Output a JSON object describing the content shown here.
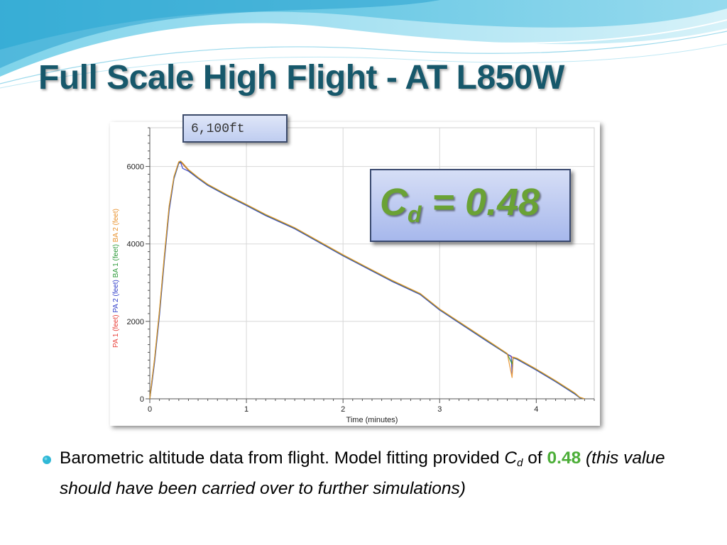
{
  "slide": {
    "title": "Full Scale High Flight - AT L850W",
    "callout_peak": "6,100ft",
    "cd_box": {
      "symbol": "C",
      "subscript": "d",
      "equals_value": " = 0.48"
    },
    "bullet": {
      "text1": "Barometric altitude data from flight. Model fitting provided ",
      "cd_symbol": "C",
      "cd_sub": "d",
      "text2": " of ",
      "value": "0.48",
      "text3": " (this value should have been carried over to further simulations)"
    },
    "colors": {
      "title": "#17586b",
      "cd_value": "#6aa235",
      "bullet_value": "#4cae38",
      "bullet_marker": "#2fb8d6"
    }
  },
  "chart_data": {
    "type": "line",
    "xlabel": "Time (minutes)",
    "ylabel_parts": [
      {
        "text": "PA 1 (feet)",
        "color": "#e8413a"
      },
      {
        "text": "PA 2 (feet)",
        "color": "#3340c9"
      },
      {
        "text": "BA 1 (feet)",
        "color": "#2e9a3a"
      },
      {
        "text": "BA 2 (feet)",
        "color": "#e8922e"
      }
    ],
    "xlim": [
      0,
      4.6
    ],
    "ylim": [
      0,
      7000
    ],
    "x_ticks": [
      0,
      1,
      2,
      3,
      4
    ],
    "y_ticks": [
      0,
      2000,
      4000,
      6000
    ],
    "x_tick_labels": [
      "0",
      "1",
      "2",
      "3",
      "4"
    ],
    "y_tick_labels": [
      "0",
      "2000",
      "4000",
      "6000"
    ],
    "grid": true,
    "legend": "none",
    "series": [
      {
        "color": "#e8413a",
        "x": [
          0,
          0.02,
          0.05,
          0.1,
          0.15,
          0.2,
          0.25,
          0.3,
          0.32,
          0.34,
          0.4,
          0.5,
          0.6,
          0.8,
          1.0,
          1.2,
          1.5,
          2.0,
          2.5,
          2.8,
          3.0,
          3.5,
          3.7,
          3.75,
          3.76,
          3.8,
          4.0,
          4.2,
          4.4,
          4.45,
          4.5
        ],
        "y": [
          0,
          400,
          1000,
          2200,
          3600,
          4900,
          5700,
          6100,
          6120,
          6060,
          5900,
          5700,
          5520,
          5250,
          5000,
          4740,
          4400,
          3700,
          3050,
          2700,
          2300,
          1480,
          1150,
          1080,
          1060,
          1030,
          750,
          450,
          130,
          30,
          0
        ]
      },
      {
        "color": "#3340c9",
        "x": [
          0,
          0.02,
          0.05,
          0.1,
          0.15,
          0.2,
          0.25,
          0.3,
          0.32,
          0.34,
          0.4,
          0.5,
          0.6,
          0.8,
          1.0,
          1.2,
          1.5,
          2.0,
          2.5,
          2.8,
          3.0,
          3.5,
          3.7,
          3.74,
          3.75,
          3.76,
          3.8,
          4.0,
          4.2,
          4.4,
          4.45,
          4.5
        ],
        "y": [
          0,
          350,
          950,
          2150,
          3550,
          4850,
          5680,
          6080,
          6100,
          5950,
          5880,
          5690,
          5510,
          5240,
          4990,
          4730,
          4390,
          3690,
          3040,
          2690,
          2290,
          1470,
          1150,
          1100,
          650,
          1060,
          1020,
          740,
          440,
          120,
          25,
          0
        ]
      },
      {
        "color": "#2e9a3a",
        "x": [
          0,
          0.02,
          0.05,
          0.1,
          0.15,
          0.2,
          0.25,
          0.3,
          0.32,
          0.34,
          0.4,
          0.5,
          0.6,
          0.8,
          1.0,
          1.2,
          1.5,
          2.0,
          2.5,
          2.8,
          3.0,
          3.5,
          3.7,
          3.75,
          3.76,
          3.8,
          4.0,
          4.2,
          4.4,
          4.45,
          4.5
        ],
        "y": [
          0,
          420,
          1030,
          2250,
          3650,
          4950,
          5720,
          6110,
          6130,
          6080,
          5910,
          5710,
          5530,
          5260,
          5010,
          4750,
          4410,
          3710,
          3060,
          2710,
          2310,
          1490,
          1160,
          900,
          1070,
          1040,
          760,
          460,
          140,
          35,
          0
        ]
      },
      {
        "color": "#e8922e",
        "x": [
          0,
          0.02,
          0.05,
          0.1,
          0.15,
          0.2,
          0.25,
          0.3,
          0.32,
          0.34,
          0.4,
          0.5,
          0.6,
          0.8,
          1.0,
          1.2,
          1.5,
          2.0,
          2.5,
          2.8,
          3.0,
          3.5,
          3.7,
          3.75,
          3.76,
          3.8,
          4.0,
          4.2,
          4.4,
          4.45,
          4.5
        ],
        "y": [
          0,
          430,
          1050,
          2280,
          3680,
          4970,
          5740,
          6120,
          6140,
          6090,
          5920,
          5720,
          5540,
          5270,
          5020,
          4760,
          4420,
          3720,
          3070,
          2720,
          2320,
          1500,
          1170,
          550,
          1080,
          1050,
          770,
          470,
          150,
          40,
          0
        ]
      }
    ]
  }
}
